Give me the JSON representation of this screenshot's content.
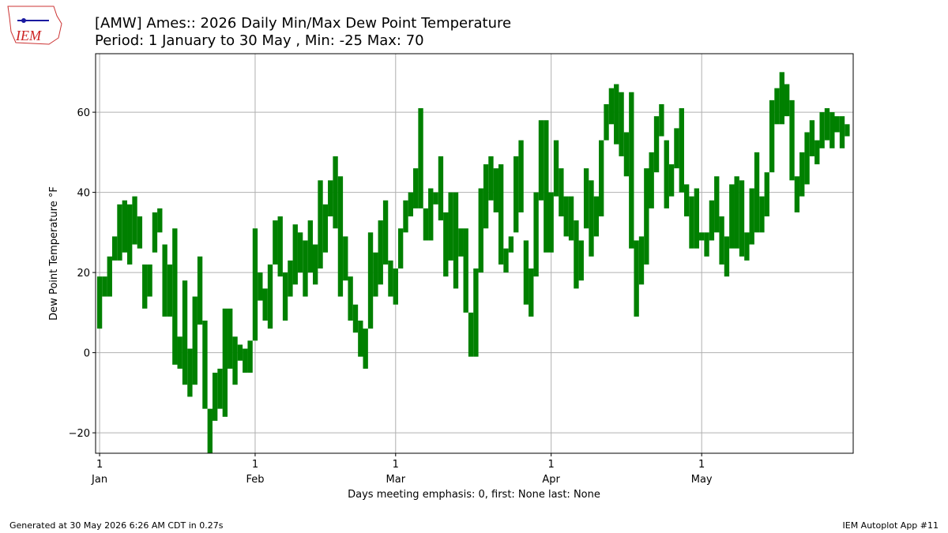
{
  "logo_text": "IEM",
  "footer_left": "Generated at 30 May 2026 6:26 AM CDT in 0.27s",
  "footer_right": "IEM Autoplot App #11",
  "chart_data": {
    "type": "range_bar",
    "title": "[AMW] Ames:: 2026 Daily Min/Max Dew Point Temperature",
    "subtitle": "Period: 1 January to 30 May , Min: -25 Max: 70",
    "xlabel": "Days meeting emphasis: 0, first: None last: None",
    "ylabel": "Dew Point Temperature °F",
    "color": "#008000",
    "grid": true,
    "xlim": [
      -0.8,
      150.2
    ],
    "ylim": [
      -25.1,
      74.6
    ],
    "yticks": [
      {
        "value": -20,
        "label": "−20"
      },
      0,
      20,
      40,
      60
    ],
    "xticks": [
      {
        "value": 0,
        "label": "1"
      },
      {
        "value": 31,
        "label": "1"
      },
      {
        "value": 59,
        "label": "1"
      },
      {
        "value": 90,
        "label": "1"
      },
      {
        "value": 120,
        "label": "1"
      }
    ],
    "xtick_months": [
      "Jan",
      "Feb",
      "Mar",
      "Apr",
      "May"
    ],
    "low": [
      6,
      14,
      14,
      23,
      23,
      25,
      22,
      27,
      26,
      11,
      14,
      25,
      30,
      9,
      9,
      -3,
      -4,
      -8,
      -11,
      -8,
      7,
      -14,
      -25,
      -17,
      -14,
      -16,
      -4,
      -8,
      -2,
      -5,
      -5,
      3,
      13,
      8,
      6,
      22,
      19,
      8,
      14,
      17,
      20,
      14,
      20,
      17,
      21,
      25,
      34,
      31,
      14,
      18,
      8,
      5,
      -1,
      -4,
      6,
      14,
      17,
      22,
      14,
      12,
      21,
      30,
      34,
      36,
      36,
      28,
      28,
      37,
      33,
      19,
      23,
      16,
      24,
      10,
      -1,
      -1,
      20,
      31,
      38,
      35,
      22,
      20,
      25,
      30,
      35,
      12,
      9,
      19,
      38,
      25,
      25,
      39,
      34,
      29,
      28,
      16,
      18,
      31,
      24,
      29,
      34,
      53,
      57,
      52,
      49,
      44,
      26,
      9,
      17,
      22,
      36,
      45,
      54,
      36,
      39,
      46,
      40,
      34,
      26,
      26,
      28,
      24,
      28,
      30,
      22,
      19,
      26,
      26,
      24,
      23,
      27,
      30,
      30,
      34,
      45,
      57,
      57,
      59,
      43,
      35,
      39,
      42,
      49,
      47,
      51,
      53,
      51,
      55,
      51,
      54
    ],
    "high": [
      19,
      19,
      24,
      29,
      37,
      38,
      37,
      39,
      34,
      22,
      22,
      35,
      36,
      27,
      22,
      31,
      4,
      18,
      1,
      14,
      24,
      8,
      -14,
      -5,
      -4,
      11,
      11,
      4,
      2,
      1,
      3,
      31,
      20,
      16,
      22,
      33,
      34,
      20,
      23,
      32,
      30,
      28,
      33,
      27,
      43,
      37,
      43,
      49,
      44,
      29,
      19,
      12,
      8,
      6,
      30,
      25,
      33,
      38,
      23,
      21,
      31,
      38,
      40,
      46,
      61,
      36,
      41,
      40,
      49,
      35,
      40,
      40,
      31,
      31,
      10,
      21,
      41,
      47,
      49,
      46,
      47,
      26,
      29,
      49,
      53,
      28,
      21,
      40,
      58,
      58,
      40,
      53,
      46,
      39,
      39,
      33,
      28,
      46,
      43,
      39,
      53,
      62,
      66,
      67,
      65,
      55,
      65,
      28,
      29,
      46,
      50,
      59,
      62,
      53,
      47,
      56,
      61,
      42,
      39,
      41,
      30,
      30,
      38,
      44,
      34,
      29,
      42,
      44,
      43,
      30,
      41,
      50,
      39,
      45,
      63,
      66,
      70,
      67,
      63,
      44,
      50,
      55,
      58,
      53,
      60,
      61,
      60,
      59,
      59,
      57
    ]
  }
}
